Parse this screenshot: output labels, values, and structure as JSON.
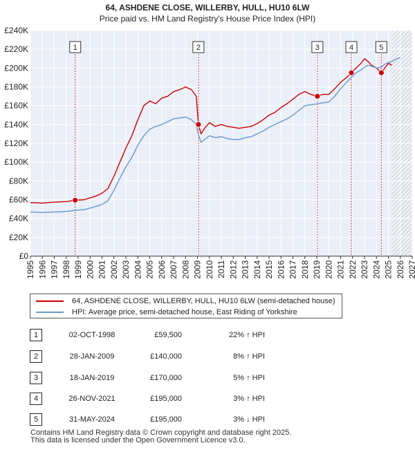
{
  "chart_data": {
    "type": "line",
    "title": "64, ASHDENE CLOSE, WILLERBY, HULL, HU10 6LW",
    "subtitle": "Price paid vs. HM Land Registry's House Price Index (HPI)",
    "xlabel": "",
    "ylabel": "",
    "xlim": [
      1995,
      2027
    ],
    "ylim": [
      0,
      240000
    ],
    "y_ticks": [
      0,
      20000,
      40000,
      60000,
      80000,
      100000,
      120000,
      140000,
      160000,
      180000,
      200000,
      220000,
      240000
    ],
    "y_tick_labels": [
      "£0",
      "£20K",
      "£40K",
      "£60K",
      "£80K",
      "£100K",
      "£120K",
      "£140K",
      "£160K",
      "£180K",
      "£200K",
      "£220K",
      "£240K"
    ],
    "x_ticks": [
      1995,
      1996,
      1997,
      1998,
      1999,
      2000,
      2001,
      2002,
      2003,
      2004,
      2005,
      2006,
      2007,
      2008,
      2009,
      2010,
      2011,
      2012,
      2013,
      2014,
      2015,
      2016,
      2017,
      2018,
      2019,
      2020,
      2021,
      2022,
      2023,
      2024,
      2025,
      2026,
      2027
    ],
    "x_tick_labels": [
      "1995",
      "1996",
      "1997",
      "1998",
      "1999",
      "2000",
      "2001",
      "2002",
      "2003",
      "2004",
      "2005",
      "2006",
      "2007",
      "2008",
      "2009",
      "2010",
      "2011",
      "2012",
      "2013",
      "2014",
      "2015",
      "2016",
      "2017",
      "2018",
      "2019",
      "2020",
      "2021",
      "2022",
      "2023",
      "2024",
      "2025",
      "2026",
      "2027"
    ],
    "grid": true,
    "forecast_start": 2025.3,
    "series": [
      {
        "name": "64, ASHDENE CLOSE, WILLERBY, HULL, HU10 6LW (semi-detached house)",
        "color": "#cc0000",
        "x": [
          1995.0,
          1996.0,
          1997.0,
          1998.0,
          1998.75,
          1999.5,
          2000.0,
          2000.5,
          2001.0,
          2001.5,
          2002.0,
          2002.5,
          2003.0,
          2003.5,
          2004.0,
          2004.5,
          2005.0,
          2005.5,
          2006.0,
          2006.5,
          2007.0,
          2007.5,
          2008.0,
          2008.5,
          2008.9,
          2009.08,
          2009.3,
          2009.6,
          2010.0,
          2010.5,
          2011.0,
          2011.5,
          2012.0,
          2012.5,
          2013.0,
          2013.5,
          2014.0,
          2014.5,
          2015.0,
          2015.5,
          2016.0,
          2016.5,
          2017.0,
          2017.5,
          2018.0,
          2018.5,
          2019.05,
          2019.5,
          2020.0,
          2020.5,
          2021.0,
          2021.5,
          2021.9,
          2022.3,
          2022.7,
          2023.0,
          2023.3,
          2023.6,
          2024.0,
          2024.41,
          2024.7,
          2025.0,
          2025.3
        ],
        "y": [
          57000,
          56500,
          57500,
          58000,
          59500,
          60000,
          62000,
          64000,
          67000,
          72000,
          85000,
          100000,
          115000,
          128000,
          145000,
          160000,
          165000,
          162000,
          168000,
          170000,
          175000,
          177000,
          180000,
          177000,
          170000,
          140000,
          130000,
          136000,
          142000,
          138000,
          140000,
          138000,
          137000,
          136000,
          137000,
          138000,
          141000,
          145000,
          150000,
          153000,
          158000,
          162000,
          167000,
          172000,
          175000,
          172000,
          170000,
          172000,
          172000,
          178000,
          185000,
          190000,
          195000,
          200000,
          205000,
          210000,
          207000,
          203000,
          200000,
          195000,
          200000,
          205000,
          203000
        ]
      },
      {
        "name": "HPI: Average price, semi-detached house, East Riding of Yorkshire",
        "color": "#6699cc",
        "x": [
          1995.0,
          1996.0,
          1997.0,
          1998.0,
          1998.75,
          1999.5,
          2000.0,
          2000.5,
          2001.0,
          2001.5,
          2002.0,
          2002.5,
          2003.0,
          2003.5,
          2004.0,
          2004.5,
          2005.0,
          2005.5,
          2006.0,
          2006.5,
          2007.0,
          2007.5,
          2008.0,
          2008.5,
          2008.9,
          2009.08,
          2009.3,
          2009.6,
          2010.0,
          2010.5,
          2011.0,
          2011.5,
          2012.0,
          2012.5,
          2013.0,
          2013.5,
          2014.0,
          2014.5,
          2015.0,
          2015.5,
          2016.0,
          2016.5,
          2017.0,
          2017.5,
          2018.0,
          2018.5,
          2019.05,
          2019.5,
          2020.0,
          2020.5,
          2021.0,
          2021.5,
          2021.9,
          2022.3,
          2022.7,
          2023.0,
          2023.3,
          2023.6,
          2024.0,
          2024.41,
          2024.7,
          2025.0,
          2025.3,
          2025.7,
          2026.0
        ],
        "y": [
          47000,
          46500,
          47000,
          47500,
          48700,
          49500,
          51000,
          53000,
          55000,
          59000,
          70000,
          83000,
          95000,
          105000,
          118000,
          128000,
          135000,
          138000,
          140000,
          143000,
          146000,
          147000,
          148000,
          145000,
          140000,
          129000,
          121000,
          124000,
          128000,
          126000,
          127000,
          125000,
          124000,
          124000,
          126000,
          127000,
          130000,
          133000,
          137000,
          140000,
          143000,
          146000,
          150000,
          155000,
          160000,
          161000,
          162000,
          163000,
          164000,
          170000,
          178000,
          185000,
          190000,
          195000,
          198000,
          201000,
          203000,
          202000,
          200000,
          201000,
          204000,
          206000,
          207000,
          210000,
          211000
        ]
      }
    ],
    "sales": [
      {
        "label": "1",
        "x": 1998.75,
        "y": 59500
      },
      {
        "label": "2",
        "x": 2009.08,
        "y": 140000
      },
      {
        "label": "3",
        "x": 2019.05,
        "y": 170000
      },
      {
        "label": "4",
        "x": 2021.9,
        "y": 195000
      },
      {
        "label": "5",
        "x": 2024.41,
        "y": 195000
      }
    ],
    "legend_position": "bottom"
  },
  "legend": {
    "property_label": "64, ASHDENE CLOSE, WILLERBY, HULL, HU10 6LW (semi-detached house)",
    "hpi_label": "HPI: Average price, semi-detached house, East Riding of Yorkshire"
  },
  "table": [
    {
      "num": "1",
      "date": "02-OCT-1998",
      "price": "£59,500",
      "hpi": "22% ↑ HPI"
    },
    {
      "num": "2",
      "date": "28-JAN-2009",
      "price": "£140,000",
      "hpi": "8% ↑ HPI"
    },
    {
      "num": "3",
      "date": "18-JAN-2019",
      "price": "£170,000",
      "hpi": "5% ↑ HPI"
    },
    {
      "num": "4",
      "date": "26-NOV-2021",
      "price": "£195,000",
      "hpi": "3% ↑ HPI"
    },
    {
      "num": "5",
      "date": "31-MAY-2024",
      "price": "£195,000",
      "hpi": "3% ↓ HPI"
    }
  ],
  "footer": {
    "line1": "Contains HM Land Registry data © Crown copyright and database right 2025.",
    "line2": "This data is licensed under the Open Government Licence v3.0."
  }
}
